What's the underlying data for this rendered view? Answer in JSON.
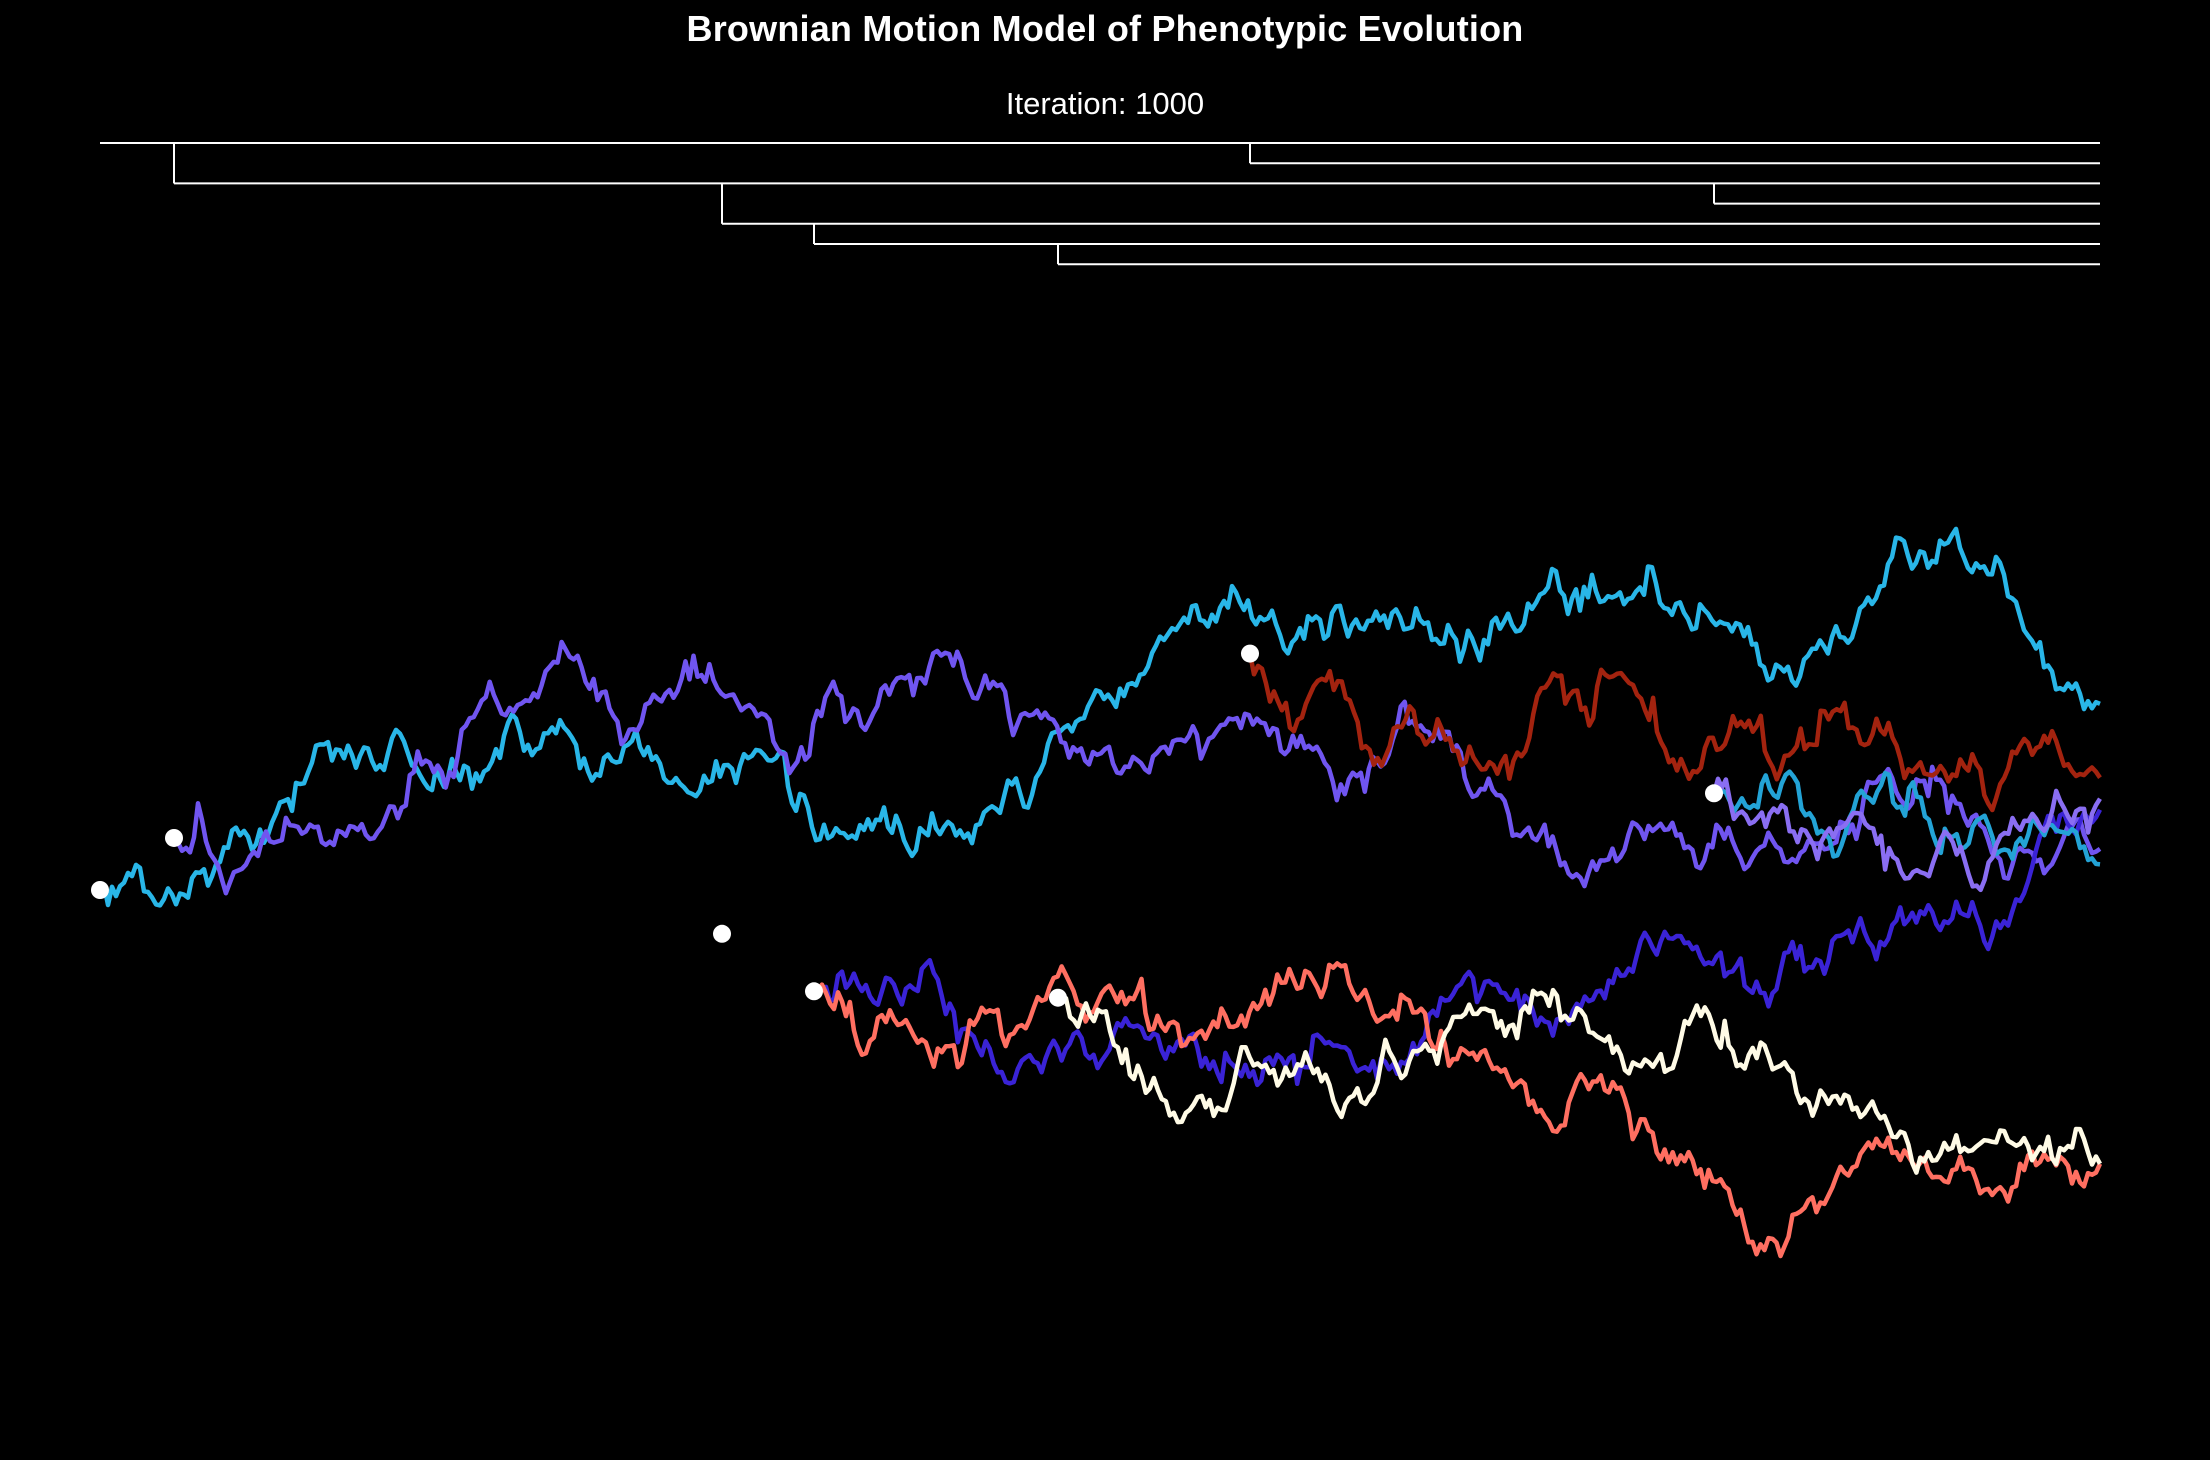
{
  "page": {
    "background": "#000000",
    "title": "Brownian Motion Model of Phenotypic Evolution",
    "iteration_text": "Iteration: 1000"
  },
  "chart_data": {
    "type": "line",
    "title": "Brownian Motion Model of Phenotypic Evolution",
    "subtitle": "Iteration: 1000",
    "xlabel": "",
    "ylabel": "",
    "axes_visible": false,
    "grid": false,
    "legend": "none",
    "step_time_range": [
      0,
      1000
    ],
    "trait_range": [
      -6.3,
      6.3
    ],
    "tree": {
      "color": "#ffffff",
      "split_times": [
        0,
        37,
        311,
        357,
        479,
        575,
        807
      ],
      "end_time": 1000,
      "tip_count": 8
    },
    "split_markers": [
      {
        "time": 0,
        "value": 0
      },
      {
        "time": 37,
        "value": 0.57
      },
      {
        "time": 311,
        "value": -0.48
      },
      {
        "time": 357,
        "value": -1.11
      },
      {
        "time": 479,
        "value": -1.18
      },
      {
        "time": 575,
        "value": 2.59
      },
      {
        "time": 807,
        "value": 1.06
      }
    ],
    "series": [
      {
        "color": "#29b6e8",
        "start_time": 0,
        "end_time": 1000,
        "start_value": 0,
        "end_value": 2.04
      },
      {
        "color": "#7055f0",
        "start_time": 37,
        "end_time": 1000,
        "start_value": 0.57,
        "end_value": 0.45
      },
      {
        "color": "#3a23d6",
        "start_time": 357,
        "end_time": 1000,
        "start_value": -1.11,
        "end_value": 0.88
      },
      {
        "color": "#ff6f61",
        "start_time": 357,
        "end_time": 1000,
        "start_value": -1.11,
        "end_value": -3.0
      },
      {
        "color": "#fffbe6",
        "start_time": 479,
        "end_time": 1000,
        "start_value": -1.18,
        "end_value": -3.0
      },
      {
        "color": "#a3230f",
        "start_time": 575,
        "end_time": 1000,
        "start_value": 2.59,
        "end_value": 1.23
      },
      {
        "color": "#23a3d6",
        "start_time": 807,
        "end_time": 1000,
        "start_value": 1.06,
        "end_value": 0.28
      },
      {
        "color": "#8a6ef2",
        "start_time": 807,
        "end_time": 1000,
        "start_value": 1.06,
        "end_value": 1.0
      }
    ]
  }
}
